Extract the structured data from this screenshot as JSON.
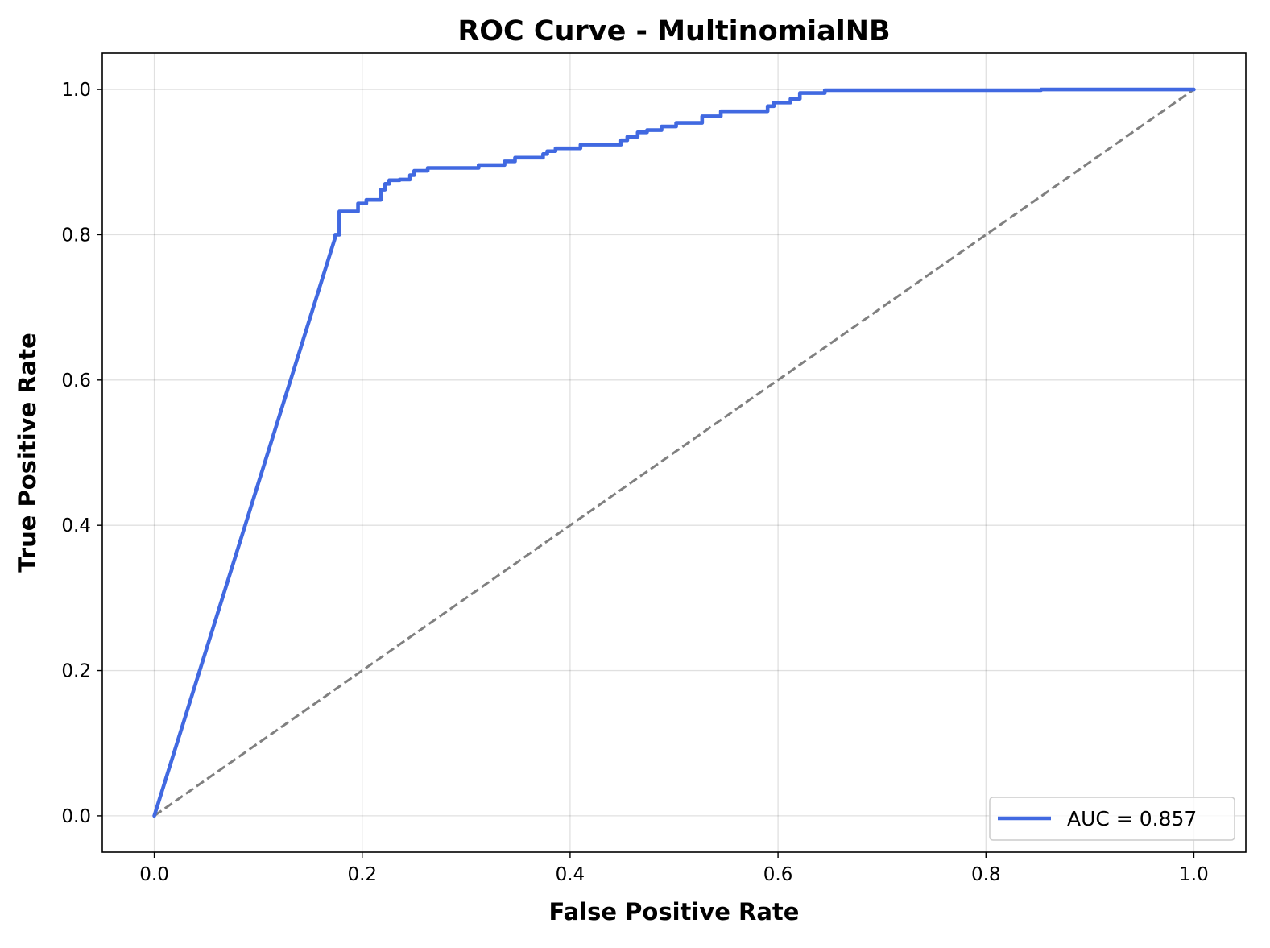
{
  "chart_data": {
    "type": "line",
    "title": "ROC Curve - MultinomialNB",
    "xlabel": "False Positive Rate",
    "ylabel": "True Positive Rate",
    "xlim": [
      -0.05,
      1.05
    ],
    "ylim": [
      -0.05,
      1.05
    ],
    "xticks": [
      0.0,
      0.2,
      0.4,
      0.6,
      0.8,
      1.0
    ],
    "xtick_labels": [
      "0.0",
      "0.2",
      "0.4",
      "0.6",
      "0.8",
      "1.0"
    ],
    "yticks": [
      0.0,
      0.2,
      0.4,
      0.6,
      0.8,
      1.0
    ],
    "ytick_labels": [
      "0.0",
      "0.2",
      "0.4",
      "0.6",
      "0.8",
      "1.0"
    ],
    "grid": true,
    "legend_position": "lower-right",
    "series": [
      {
        "name": "AUC = 0.857",
        "color": "#4169E1",
        "style": "solid",
        "x": [
          0.0,
          0.174,
          0.174,
          0.178,
          0.178,
          0.196,
          0.196,
          0.204,
          0.204,
          0.218,
          0.218,
          0.222,
          0.222,
          0.226,
          0.226,
          0.236,
          0.236,
          0.246,
          0.246,
          0.25,
          0.25,
          0.263,
          0.263,
          0.312,
          0.312,
          0.337,
          0.337,
          0.347,
          0.347,
          0.374,
          0.374,
          0.378,
          0.378,
          0.386,
          0.386,
          0.41,
          0.41,
          0.449,
          0.449,
          0.455,
          0.455,
          0.465,
          0.465,
          0.474,
          0.474,
          0.488,
          0.488,
          0.502,
          0.502,
          0.527,
          0.527,
          0.545,
          0.545,
          0.59,
          0.59,
          0.596,
          0.596,
          0.612,
          0.612,
          0.621,
          0.621,
          0.645,
          0.645,
          0.853,
          0.853,
          1.0
        ],
        "y": [
          0.0,
          0.796,
          0.8,
          0.8,
          0.832,
          0.832,
          0.843,
          0.843,
          0.848,
          0.848,
          0.862,
          0.862,
          0.87,
          0.87,
          0.875,
          0.875,
          0.876,
          0.876,
          0.882,
          0.882,
          0.888,
          0.888,
          0.892,
          0.892,
          0.896,
          0.896,
          0.901,
          0.901,
          0.906,
          0.906,
          0.911,
          0.911,
          0.915,
          0.915,
          0.919,
          0.919,
          0.924,
          0.924,
          0.93,
          0.93,
          0.935,
          0.935,
          0.941,
          0.941,
          0.944,
          0.944,
          0.949,
          0.949,
          0.954,
          0.954,
          0.963,
          0.963,
          0.97,
          0.97,
          0.977,
          0.977,
          0.982,
          0.982,
          0.987,
          0.987,
          0.995,
          0.995,
          0.999,
          0.999,
          1.0,
          1.0
        ]
      },
      {
        "name": "",
        "color": "#808080",
        "style": "dashed",
        "x": [
          0.0,
          1.0
        ],
        "y": [
          0.0,
          1.0
        ]
      }
    ]
  }
}
